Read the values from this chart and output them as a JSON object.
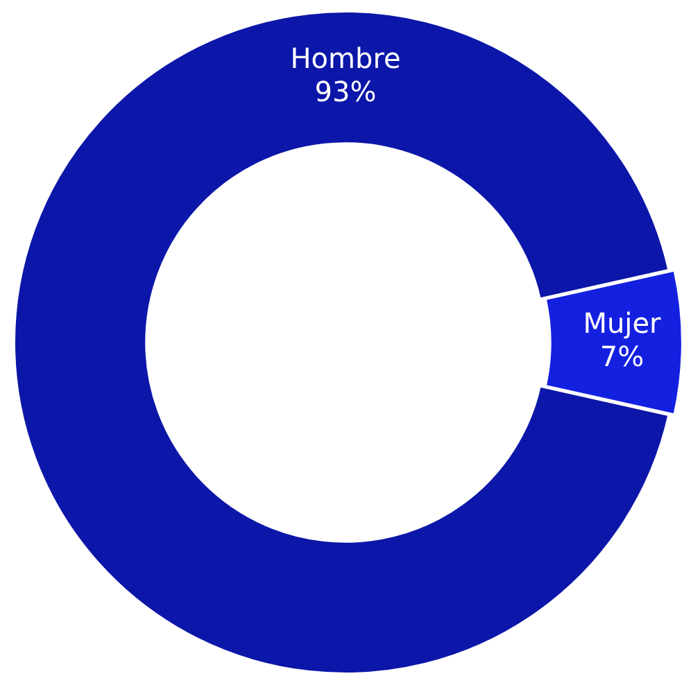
{
  "chart_data": {
    "type": "donut",
    "categories": [
      "Hombre",
      "Mujer"
    ],
    "values": [
      93,
      7
    ],
    "colors": [
      "#0c16a8",
      "#1420e0"
    ],
    "value_labels": [
      "93%",
      "7%"
    ],
    "legend": false
  }
}
